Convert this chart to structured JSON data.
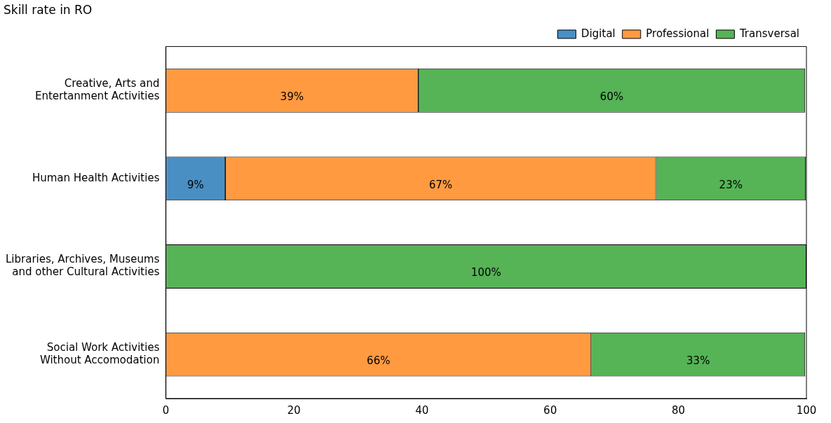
{
  "chart_data": {
    "type": "bar",
    "orientation": "horizontal",
    "stacked": true,
    "title": "Skill rate in RO",
    "categories": [
      "Creative, Arts and\nEntertanment Activities",
      "Human Health Activities",
      "Libraries, Archives, Museums\nand other Cultural Activities",
      "Social Work Activities\nWithout Accomodation"
    ],
    "series": [
      {
        "name": "Digital",
        "color": "#4a8fc4",
        "values": [
          null,
          9.3,
          null,
          null
        ],
        "value_labels": [
          null,
          "9%",
          null,
          null
        ]
      },
      {
        "name": "Professional",
        "color": "#ff9a40",
        "values": [
          39.4,
          67.2,
          null,
          66.4
        ],
        "value_labels": [
          "39%",
          "67%",
          null,
          "66%"
        ]
      },
      {
        "name": "Transversal",
        "color": "#56b356",
        "values": [
          60.4,
          23.4,
          100,
          33.4
        ],
        "value_labels": [
          "60%",
          "23%",
          "100%",
          "33%"
        ]
      }
    ],
    "xlim": [
      0,
      100
    ],
    "xticks": [
      0,
      20,
      40,
      60,
      80,
      100
    ],
    "grid": false,
    "legend": "top right"
  }
}
